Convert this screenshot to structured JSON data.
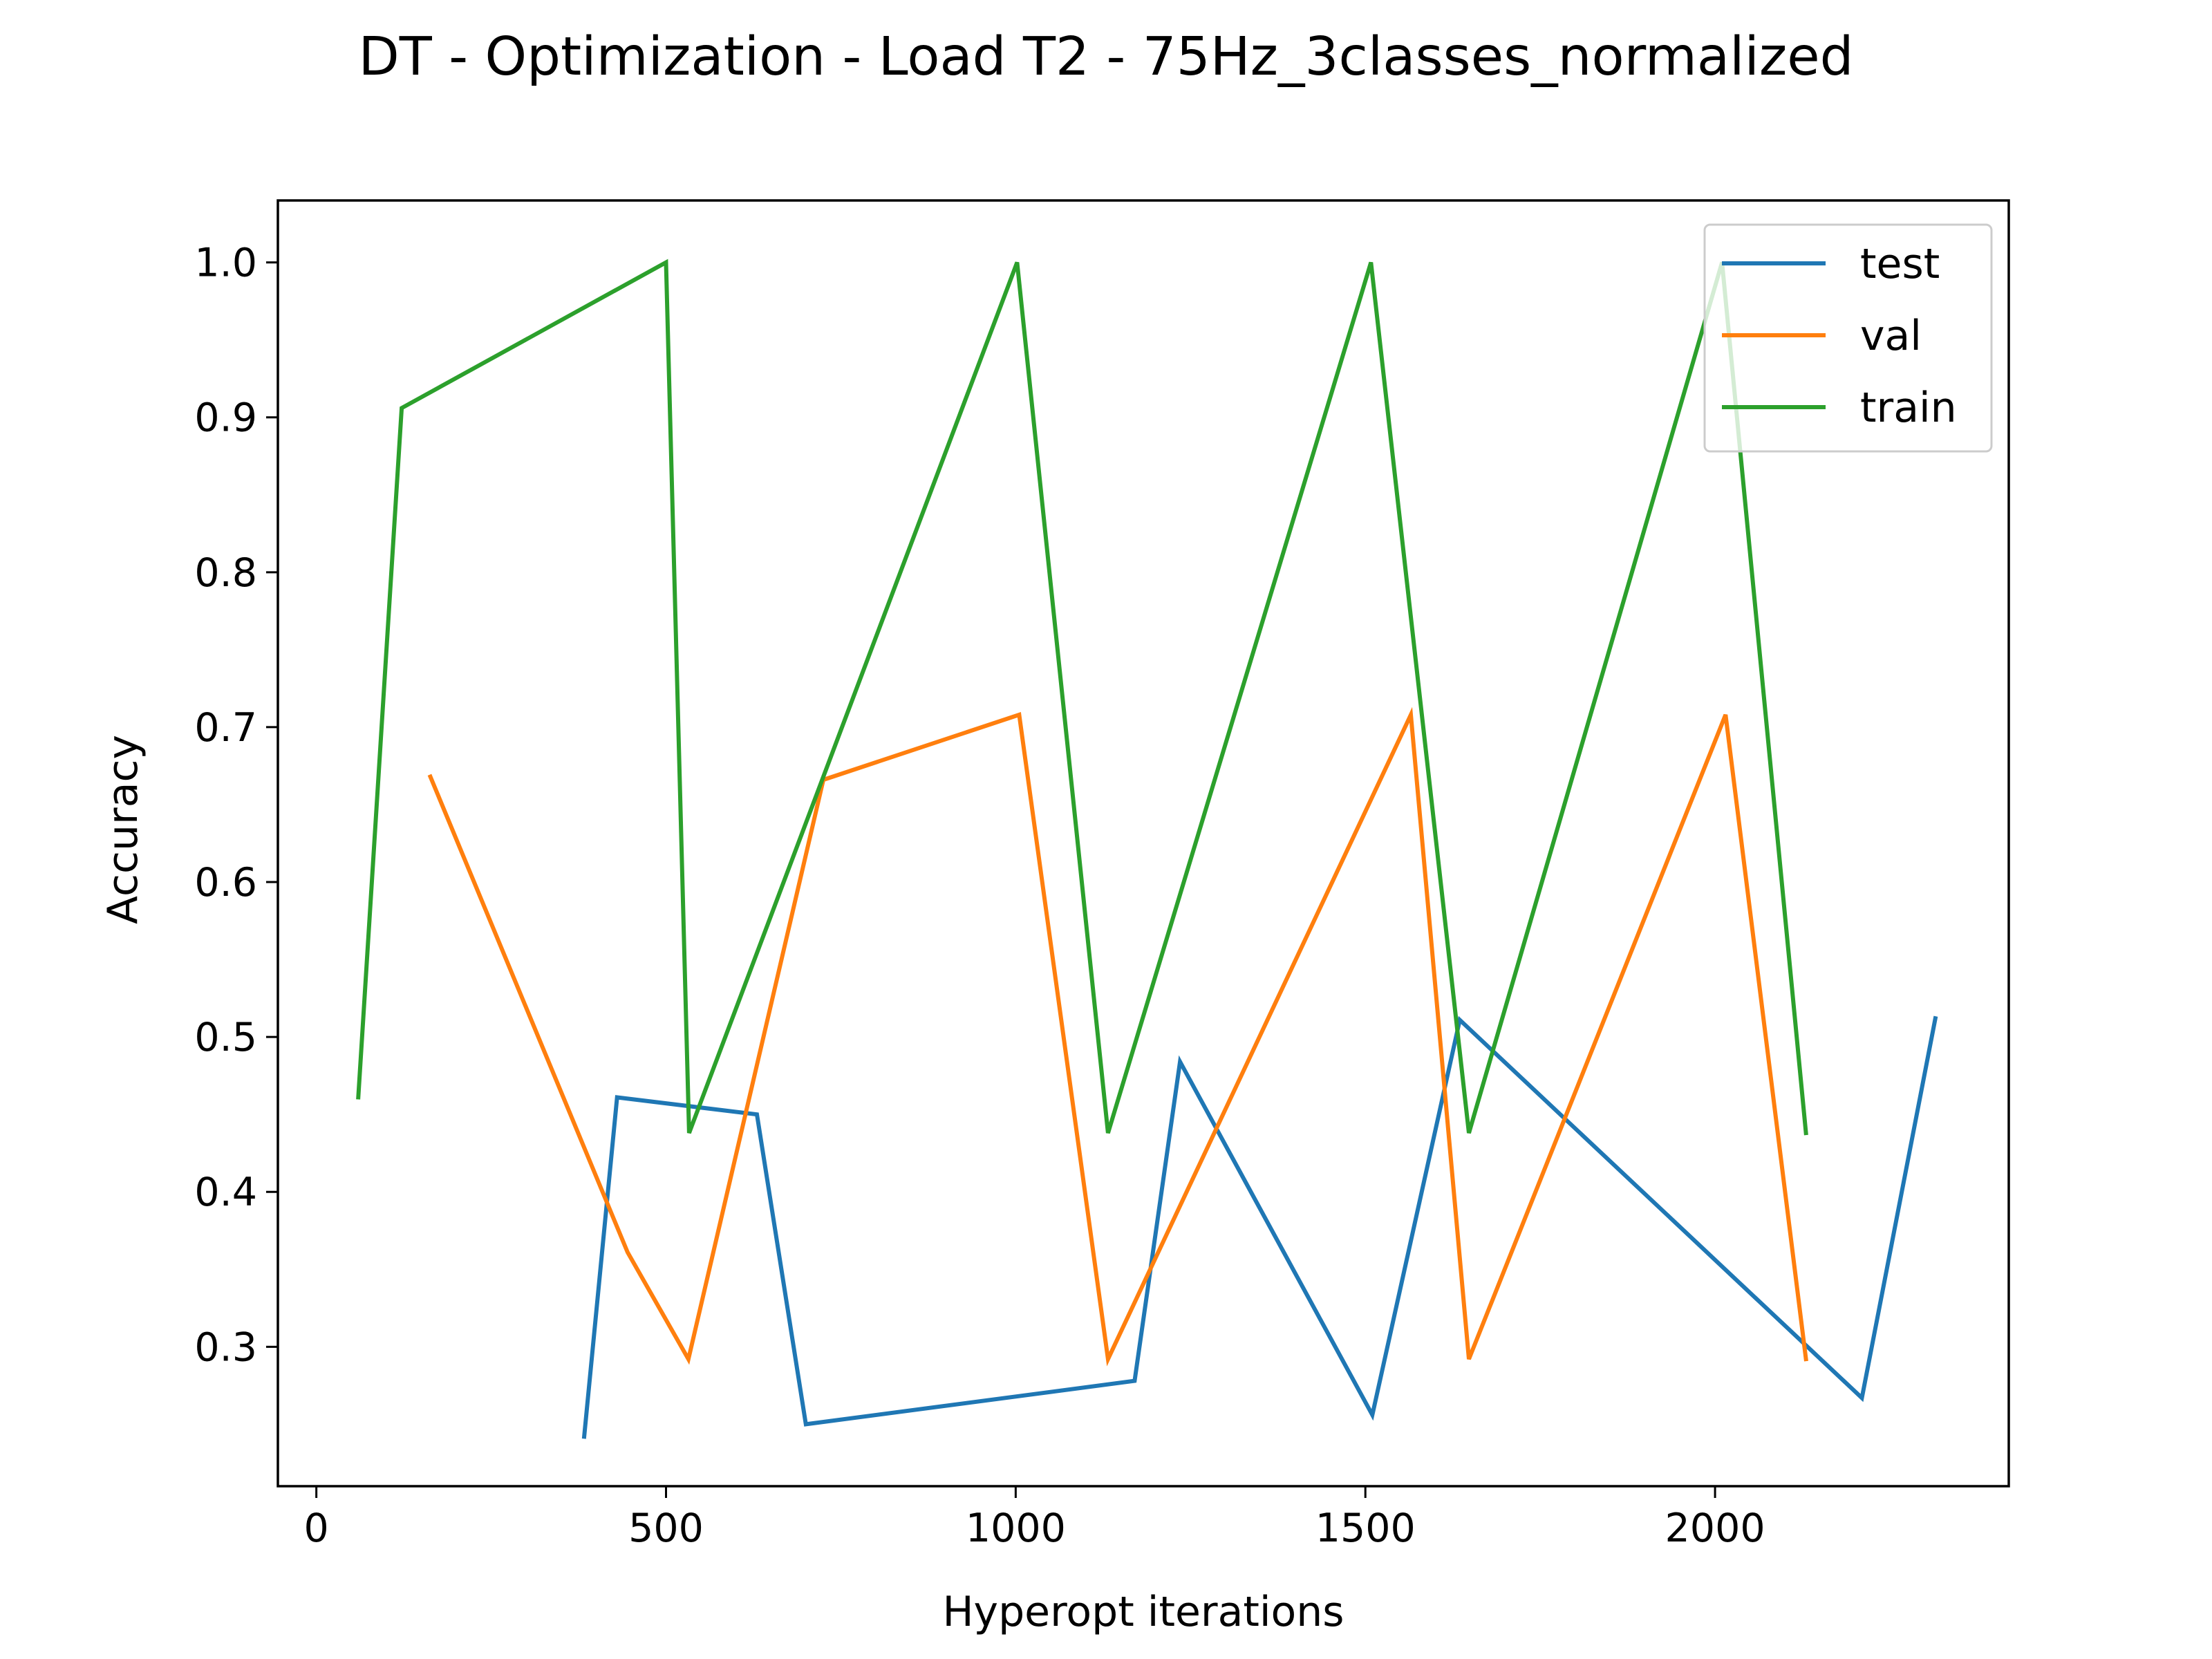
{
  "chart_data": {
    "type": "line",
    "title": "DT - Optimization - Load T2 - 75Hz_3classes_normalized",
    "xlabel": "Hyperopt iterations",
    "ylabel": "Accuracy",
    "xlim": [
      -55,
      2420
    ],
    "ylim": [
      0.21,
      1.04
    ],
    "xticks": [
      0,
      500,
      1000,
      1500,
      2000
    ],
    "yticks": [
      0.3,
      0.4,
      0.5,
      0.6,
      0.7,
      0.8,
      0.9,
      1.0
    ],
    "grid": false,
    "legend_position": "top-right",
    "series": [
      {
        "name": "test",
        "color": "#1f77b4",
        "points": [
          [
            383,
            0.242
          ],
          [
            430,
            0.461
          ],
          [
            630,
            0.45
          ],
          [
            700,
            0.25
          ],
          [
            1170,
            0.278
          ],
          [
            1235,
            0.484
          ],
          [
            1510,
            0.256
          ],
          [
            1635,
            0.511
          ],
          [
            2210,
            0.267
          ],
          [
            2315,
            0.512
          ]
        ]
      },
      {
        "name": "val",
        "color": "#ff7f0e",
        "points": [
          [
            163,
            0.668
          ],
          [
            445,
            0.361
          ],
          [
            532,
            0.292
          ],
          [
            725,
            0.666
          ],
          [
            1005,
            0.708
          ],
          [
            1132,
            0.292
          ],
          [
            1565,
            0.708
          ],
          [
            1648,
            0.292
          ],
          [
            2015,
            0.708
          ],
          [
            2130,
            0.292
          ]
        ]
      },
      {
        "name": "train",
        "color": "#2ca02c",
        "points": [
          [
            60,
            0.461
          ],
          [
            122,
            0.906
          ],
          [
            500,
            1.0
          ],
          [
            533,
            0.438
          ],
          [
            1002,
            1.0
          ],
          [
            1132,
            0.438
          ],
          [
            1508,
            1.0
          ],
          [
            1648,
            0.438
          ],
          [
            2010,
            1.0
          ],
          [
            2130,
            0.438
          ]
        ]
      }
    ]
  }
}
